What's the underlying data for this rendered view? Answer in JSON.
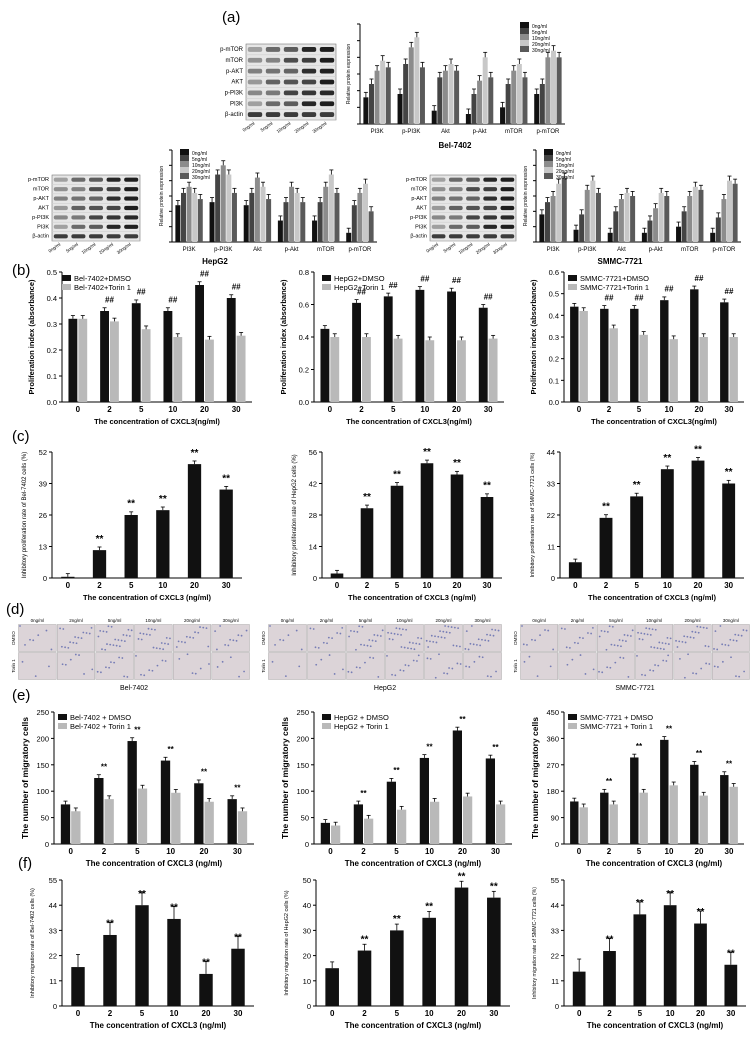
{
  "figure": {
    "panel_labels": [
      "(a)",
      "(b)",
      "(c)",
      "(d)",
      "(e)",
      "(f)"
    ],
    "colors": {
      "bar_black": "#111111",
      "bar_grey": "#b9b9b9",
      "axis": "#000000",
      "wb_bg": "#e6e6e6",
      "tw_bg": "#d8cfd4",
      "tw_cell": "#6f78b8"
    }
  },
  "western": {
    "conc_label": "0ng/ml 5ng/ml 10ng/ml 20ng/ml 30ng/ml",
    "cell_titles": [
      "Bel-7402",
      "HepG2",
      "SMMC-7721"
    ],
    "ylabel": "Relative protein expression",
    "blots": [
      {
        "name": "Bel-7402",
        "rows": [
          "p-mTOR",
          "mTOR",
          "p-AKT",
          "AKT",
          "p-PI3K",
          "PI3K",
          "β-actin"
        ],
        "lanes": [
          "0ng/ml",
          "5ng/ml",
          "10ng/ml",
          "20ng/ml",
          "30ng/ml"
        ]
      },
      {
        "name": "HepG2",
        "rows": [
          "p-mTOR",
          "mTOR",
          "p-AKT",
          "AKT",
          "p-PI3K",
          "PI3K",
          "β-actin"
        ],
        "lanes": [
          "0ng/ml",
          "5ng/ml",
          "10ng/ml",
          "20ng/ml",
          "30ng/ml"
        ]
      },
      {
        "name": "SMMC-7721",
        "rows": [
          "p-mTOR",
          "mTOR",
          "p-AKT",
          "AKT",
          "p-PI3K",
          "PI3K",
          "β-actin"
        ],
        "lanes": [
          "0ng/ml",
          "5ng/ml",
          "10ng/ml",
          "20ng/ml",
          "30ng/ml"
        ]
      }
    ]
  },
  "transwell": {
    "conc_labels": [
      "0ng/ml",
      "2ng/ml",
      "5ng/ml",
      "10ng/ml",
      "20ng/ml",
      "30ng/ml"
    ],
    "rows": [
      "DMSO",
      "Torin 1"
    ],
    "cells": [
      "Bel-7402",
      "HepG2",
      "SMMC-7721"
    ]
  },
  "chart_data": [
    {
      "id": "a-bel",
      "panel": "a",
      "type": "bar",
      "title": "Bel-7402",
      "ylabel": "Relative protein expression",
      "ylim": [
        0,
        3
      ],
      "categories": [
        "PI3K",
        "p-PI3K",
        "Akt",
        "p-Akt",
        "mTOR",
        "p-mTOR"
      ],
      "series": [
        {
          "name": "0ng/ml",
          "color": "#111111",
          "values": [
            0.8,
            0.9,
            0.4,
            0.3,
            0.5,
            0.9
          ]
        },
        {
          "name": "5ng/ml",
          "color": "#444444",
          "values": [
            1.2,
            1.8,
            1.4,
            0.9,
            1.2,
            1.2
          ]
        },
        {
          "name": "10ng/ml",
          "color": "#8c8c8c",
          "values": [
            1.6,
            2.3,
            1.6,
            1.3,
            1.6,
            2.0
          ]
        },
        {
          "name": "20ng/ml",
          "color": "#c8c8c8",
          "values": [
            1.9,
            2.6,
            1.8,
            2.0,
            1.8,
            2.2
          ]
        },
        {
          "name": "30ng/ml",
          "color": "#5a5a5a",
          "values": [
            1.7,
            1.7,
            1.6,
            1.4,
            1.4,
            2.0
          ]
        }
      ]
    },
    {
      "id": "a-hep",
      "panel": "a",
      "type": "bar",
      "title": "HepG2",
      "ylabel": "Relative protein expression",
      "ylim": [
        0,
        3
      ],
      "categories": [
        "PI3K",
        "p-PI3K",
        "Akt",
        "p-Akt",
        "mTOR",
        "p-mTOR"
      ],
      "series": [
        {
          "name": "0ng/ml",
          "color": "#111111",
          "values": [
            1.2,
            1.3,
            1.2,
            0.7,
            0.7,
            0.3
          ]
        },
        {
          "name": "5ng/ml",
          "color": "#444444",
          "values": [
            1.6,
            2.2,
            1.6,
            1.3,
            1.3,
            1.2
          ]
        },
        {
          "name": "10ng/ml",
          "color": "#8c8c8c",
          "values": [
            1.8,
            2.5,
            2.1,
            1.8,
            1.8,
            1.6
          ]
        },
        {
          "name": "20ng/ml",
          "color": "#c8c8c8",
          "values": [
            1.6,
            2.2,
            1.8,
            1.6,
            2.2,
            1.9
          ]
        },
        {
          "name": "30ng/ml",
          "color": "#5a5a5a",
          "values": [
            1.4,
            1.6,
            1.4,
            1.3,
            1.6,
            1.0
          ]
        }
      ]
    },
    {
      "id": "a-smmc",
      "panel": "a",
      "type": "bar",
      "title": "SMMC-7721",
      "ylabel": "Relative protein expression",
      "ylim": [
        0,
        3
      ],
      "categories": [
        "PI3K",
        "p-PI3K",
        "Akt",
        "p-Akt",
        "mTOR",
        "p-mTOR"
      ],
      "series": [
        {
          "name": "0ng/ml",
          "color": "#111111",
          "values": [
            0.9,
            0.4,
            0.3,
            0.3,
            0.5,
            0.3
          ]
        },
        {
          "name": "5ng/ml",
          "color": "#444444",
          "values": [
            1.3,
            0.9,
            1.0,
            0.7,
            1.0,
            0.8
          ]
        },
        {
          "name": "10ng/ml",
          "color": "#8c8c8c",
          "values": [
            1.5,
            1.7,
            1.4,
            1.1,
            1.5,
            1.4
          ]
        },
        {
          "name": "20ng/ml",
          "color": "#c8c8c8",
          "values": [
            1.9,
            2.0,
            1.6,
            1.6,
            1.8,
            2.0
          ]
        },
        {
          "name": "30ng/ml",
          "color": "#5a5a5a",
          "values": [
            2.1,
            1.6,
            1.5,
            1.5,
            1.7,
            1.9
          ]
        }
      ]
    },
    {
      "id": "b-bel",
      "panel": "b",
      "type": "bar",
      "ylabel": "Proliferation index (absorbance)",
      "xlabel": "The concentration of CXCL3(ng/ml)",
      "ylim": [
        0,
        0.5
      ],
      "categories": [
        "0",
        "2",
        "5",
        "10",
        "20",
        "30"
      ],
      "series": [
        {
          "name": "Bel-7402+DMSO",
          "color": "#111111",
          "values": [
            0.32,
            0.35,
            0.38,
            0.35,
            0.45,
            0.4
          ]
        },
        {
          "name": "Bel-7402+Torin 1",
          "color": "#b9b9b9",
          "values": [
            0.32,
            0.31,
            0.28,
            0.25,
            0.24,
            0.255
          ]
        }
      ],
      "annotations": [
        "",
        "##",
        "##",
        "##",
        "##",
        "##"
      ]
    },
    {
      "id": "b-hep",
      "panel": "b",
      "type": "bar",
      "ylabel": "Proliferation index (absorbance)",
      "xlabel": "The concentration of CXCL3(ng/ml)",
      "ylim": [
        0,
        0.8
      ],
      "categories": [
        "0",
        "2",
        "5",
        "10",
        "20",
        "30"
      ],
      "series": [
        {
          "name": "HepG2+DMSO",
          "color": "#111111",
          "values": [
            0.45,
            0.61,
            0.65,
            0.69,
            0.68,
            0.58
          ]
        },
        {
          "name": "HepG2+Torin 1",
          "color": "#b9b9b9",
          "values": [
            0.4,
            0.4,
            0.39,
            0.38,
            0.38,
            0.39
          ]
        }
      ],
      "annotations": [
        "",
        "##",
        "##",
        "##",
        "##",
        "##"
      ]
    },
    {
      "id": "b-smmc",
      "panel": "b",
      "type": "bar",
      "ylabel": "Proliferation index (absorbance)",
      "xlabel": "The concentration of CXCL3(ng/ml)",
      "ylim": [
        0,
        0.6
      ],
      "categories": [
        "0",
        "2",
        "5",
        "10",
        "20",
        "30"
      ],
      "series": [
        {
          "name": "SMMC-7721+DMSO",
          "color": "#111111",
          "values": [
            0.44,
            0.43,
            0.43,
            0.47,
            0.52,
            0.46
          ]
        },
        {
          "name": "SMMC-7721+Torin 1",
          "color": "#b9b9b9",
          "values": [
            0.42,
            0.34,
            0.31,
            0.29,
            0.3,
            0.3
          ]
        }
      ],
      "annotations": [
        "",
        "##",
        "##",
        "##",
        "##",
        "##"
      ]
    },
    {
      "id": "c-bel",
      "panel": "c",
      "type": "bar",
      "ylabel": "Inhibitory proliferation rate of Bel-7402 cells (%)",
      "xlabel": "The concentration of CXCL3 (ng/ml)",
      "ylim": [
        0,
        52
      ],
      "yticks": [
        0,
        13,
        26,
        39,
        52
      ],
      "categories": [
        "0",
        "2",
        "5",
        "10",
        "20",
        "30"
      ],
      "series": [
        {
          "name": "Bel-7402",
          "color": "#111111",
          "values": [
            0.5,
            11.5,
            26,
            28,
            47,
            36.5
          ]
        }
      ],
      "annotations": [
        "",
        "**",
        "**",
        "**",
        "**",
        "**"
      ]
    },
    {
      "id": "c-hep",
      "panel": "c",
      "type": "bar",
      "ylabel": "Inhibitory proliferation rate of HepG2 cells (%)",
      "xlabel": "The concentration of CXCL3 (ng/ml)",
      "ylim": [
        0,
        56
      ],
      "yticks": [
        0,
        14,
        28,
        42,
        56
      ],
      "categories": [
        "0",
        "2",
        "5",
        "10",
        "20",
        "30"
      ],
      "series": [
        {
          "name": "HepG2",
          "color": "#111111",
          "values": [
            2,
            31,
            41,
            51,
            46,
            36
          ]
        }
      ],
      "annotations": [
        "",
        "**",
        "**",
        "**",
        "**",
        "**"
      ]
    },
    {
      "id": "c-smmc",
      "panel": "c",
      "type": "bar",
      "ylabel": "Inhibitory proliferation rate of SMMC-7721 cells (%)",
      "xlabel": "The concentration of CXCL3 (ng/ml)",
      "ylim": [
        0,
        44
      ],
      "yticks": [
        0,
        11,
        22,
        33,
        44
      ],
      "categories": [
        "0",
        "2",
        "5",
        "10",
        "20",
        "30"
      ],
      "series": [
        {
          "name": "SMMC-7721",
          "color": "#111111",
          "values": [
            5.5,
            21,
            28.5,
            38,
            41,
            33
          ]
        }
      ],
      "annotations": [
        "",
        "**",
        "**",
        "**",
        "**",
        "**"
      ]
    },
    {
      "id": "e-bel",
      "panel": "e",
      "type": "bar",
      "ylabel": "The number of migratory cells",
      "xlabel": "The concentration of CXCL3 (ng/ml)",
      "ylim": [
        0,
        250
      ],
      "yticks": [
        0,
        50,
        100,
        150,
        200,
        250
      ],
      "categories": [
        "0",
        "2",
        "5",
        "10",
        "20",
        "30"
      ],
      "series": [
        {
          "name": "Bel-7402 + DMSO",
          "color": "#111111",
          "values": [
            75,
            125,
            195,
            158,
            115,
            85
          ]
        },
        {
          "name": "Bel-7402 + Torin 1",
          "color": "#b9b9b9",
          "values": [
            62,
            85,
            105,
            97,
            80,
            62
          ]
        }
      ],
      "annotations": [
        "",
        "**",
        "**",
        "**",
        "**",
        "**"
      ]
    },
    {
      "id": "e-hep",
      "panel": "e",
      "type": "bar",
      "ylabel": "The number of migratory cells",
      "xlabel": "The concentration of CXCL3 (ng/ml)",
      "ylim": [
        0,
        250
      ],
      "yticks": [
        0,
        50,
        100,
        150,
        200,
        250
      ],
      "categories": [
        "0",
        "2",
        "5",
        "10",
        "20",
        "30"
      ],
      "series": [
        {
          "name": "HepG2 + DMSO",
          "color": "#111111",
          "values": [
            40,
            75,
            118,
            163,
            215,
            162
          ]
        },
        {
          "name": "HepG2 + Torin 1",
          "color": "#b9b9b9",
          "values": [
            35,
            48,
            65,
            80,
            90,
            75
          ]
        }
      ],
      "annotations": [
        "",
        "**",
        "**",
        "**",
        "**",
        "**"
      ]
    },
    {
      "id": "e-smmc",
      "panel": "e",
      "type": "bar",
      "ylabel": "The number of migratory cells",
      "xlabel": "The concentration of CXCL3 (ng/ml)",
      "ylim": [
        0,
        450
      ],
      "yticks": [
        0,
        90,
        180,
        270,
        360,
        450
      ],
      "categories": [
        "0",
        "2",
        "5",
        "10",
        "20",
        "30"
      ],
      "series": [
        {
          "name": "SMMC-7721 + DMSO",
          "color": "#111111",
          "values": [
            145,
            175,
            295,
            355,
            270,
            235
          ]
        },
        {
          "name": "SMMC-7721 + Torin 1",
          "color": "#b9b9b9",
          "values": [
            125,
            135,
            175,
            200,
            165,
            195
          ]
        }
      ],
      "annotations": [
        "",
        "**",
        "**",
        "**",
        "**",
        "**"
      ]
    },
    {
      "id": "f-bel",
      "panel": "f",
      "type": "bar",
      "ylabel": "Inhibitory migration rate of Bel-7402 cells (%)",
      "xlabel": "The concentration of CXCL3 (ng/ml)",
      "ylim": [
        0,
        55
      ],
      "yticks": [
        0,
        11,
        22,
        33,
        44,
        55
      ],
      "categories": [
        "0",
        "2",
        "5",
        "10",
        "20",
        "30"
      ],
      "series": [
        {
          "name": "Bel-7402",
          "color": "#111111",
          "values": [
            17,
            31,
            44,
            38,
            14,
            25
          ]
        }
      ],
      "annotations": [
        "",
        "**",
        "**",
        "**",
        "**",
        "**"
      ]
    },
    {
      "id": "f-hep",
      "panel": "f",
      "type": "bar",
      "ylabel": "Inhibitory migration rate of HepG2 cells (%)",
      "xlabel": "The concentration of CXCL3 (ng/ml)",
      "ylim": [
        0,
        50
      ],
      "yticks": [
        0,
        10,
        20,
        30,
        40,
        50
      ],
      "categories": [
        "0",
        "2",
        "5",
        "10",
        "20",
        "30"
      ],
      "series": [
        {
          "name": "HepG2",
          "color": "#111111",
          "values": [
            15,
            22,
            30,
            35,
            47,
            43
          ]
        }
      ],
      "annotations": [
        "",
        "**",
        "**",
        "**",
        "**",
        "**"
      ]
    },
    {
      "id": "f-smmc",
      "panel": "f",
      "type": "bar",
      "ylabel": "Inhibitory migration rate of SMMC-7721 cells (%)",
      "xlabel": "The concentration of CXCL3 (ng/ml)",
      "ylim": [
        0,
        55
      ],
      "yticks": [
        0,
        11,
        22,
        33,
        44,
        55
      ],
      "categories": [
        "0",
        "2",
        "5",
        "10",
        "20",
        "30"
      ],
      "series": [
        {
          "name": "SMMC-7721",
          "color": "#111111",
          "values": [
            15,
            24,
            40,
            44,
            36,
            18
          ]
        }
      ],
      "annotations": [
        "",
        "**",
        "**",
        "**",
        "**",
        "**"
      ]
    }
  ]
}
